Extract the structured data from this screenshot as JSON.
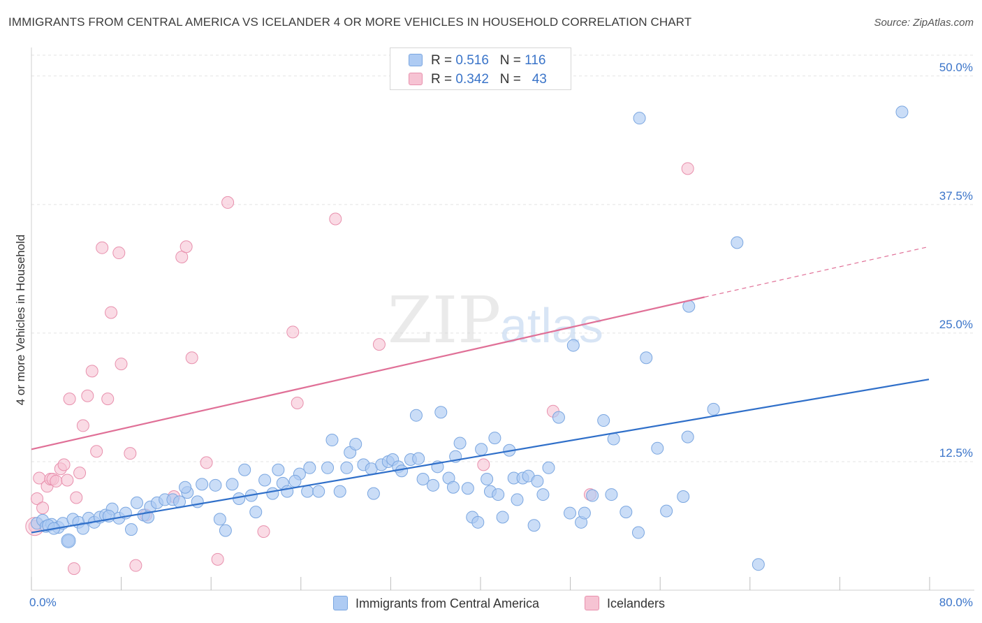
{
  "header": {
    "title": "IMMIGRANTS FROM CENTRAL AMERICA VS ICELANDER 4 OR MORE VEHICLES IN HOUSEHOLD CORRELATION CHART",
    "source": "Source: ZipAtlas.com"
  },
  "watermark": {
    "zip": "ZIP",
    "atlas": "atlas"
  },
  "legend_top": {
    "rows": [
      {
        "r_label": "R =",
        "r_value": "0.516",
        "n_label": "N =",
        "n_value": "116"
      },
      {
        "r_label": "R =",
        "r_value": "0.342",
        "n_label": "N =",
        "n_value": "43"
      }
    ]
  },
  "legend_bottom": {
    "items": [
      {
        "label": "Immigrants from Central America"
      },
      {
        "label": "Icelanders"
      }
    ]
  },
  "colors": {
    "blue_fill": "#aecbf3",
    "blue_stroke": "#7aa6e0",
    "blue_line": "#2f6fc9",
    "pink_fill": "#f6c3d3",
    "pink_stroke": "#e890ad",
    "pink_line": "#e07097",
    "axis_text": "#3a74c9",
    "grid": "#e3e3e3"
  },
  "chart_data": {
    "type": "scatter",
    "title": "IMMIGRANTS FROM CENTRAL AMERICA VS ICELANDER 4 OR MORE VEHICLES IN HOUSEHOLD CORRELATION CHART",
    "xlabel": "",
    "ylabel": "4 or more Vehicles in Household",
    "xlim": [
      0,
      80
    ],
    "ylim": [
      0,
      52.5
    ],
    "x_tick_labels": [
      "0.0%",
      "80.0%"
    ],
    "y_ticks": [
      12.5,
      25.0,
      37.5,
      50.0
    ],
    "y_tick_labels": [
      "12.5%",
      "25.0%",
      "37.5%",
      "50.0%"
    ],
    "grid": true,
    "legend_position": "top-center",
    "series": [
      {
        "name": "Immigrants from Central America",
        "color": "#aecbf3",
        "trend": {
          "x": [
            0,
            80
          ],
          "y": [
            5.6,
            20.5
          ],
          "dashed_from": null
        },
        "points": [
          [
            0.5,
            6.5
          ],
          [
            1.0,
            6.8
          ],
          [
            1.3,
            6.2
          ],
          [
            1.8,
            6.4
          ],
          [
            2.4,
            6.1
          ],
          [
            2.8,
            6.5
          ],
          [
            3.3,
            4.8
          ],
          [
            3.7,
            6.9
          ],
          [
            4.2,
            6.6
          ],
          [
            4.6,
            6.0
          ],
          [
            5.1,
            7.0
          ],
          [
            5.6,
            6.6
          ],
          [
            6.1,
            7.1
          ],
          [
            6.6,
            7.3
          ],
          [
            7.2,
            7.9
          ],
          [
            7.8,
            7.0
          ],
          [
            8.4,
            7.5
          ],
          [
            8.9,
            5.9
          ],
          [
            9.4,
            8.5
          ],
          [
            10.0,
            7.3
          ],
          [
            10.6,
            8.1
          ],
          [
            11.2,
            8.5
          ],
          [
            11.9,
            8.8
          ],
          [
            12.6,
            8.8
          ],
          [
            13.2,
            8.6
          ],
          [
            13.9,
            9.5
          ],
          [
            14.8,
            8.6
          ],
          [
            15.2,
            10.3
          ],
          [
            16.4,
            10.2
          ],
          [
            16.8,
            6.9
          ],
          [
            17.3,
            5.8
          ],
          [
            17.9,
            10.3
          ],
          [
            18.5,
            8.9
          ],
          [
            19.0,
            11.7
          ],
          [
            19.6,
            9.2
          ],
          [
            20.0,
            7.6
          ],
          [
            20.8,
            10.7
          ],
          [
            21.5,
            9.4
          ],
          [
            22.0,
            11.7
          ],
          [
            22.4,
            10.4
          ],
          [
            22.8,
            9.6
          ],
          [
            23.9,
            11.3
          ],
          [
            24.6,
            9.6
          ],
          [
            24.8,
            11.9
          ],
          [
            25.6,
            9.6
          ],
          [
            26.4,
            11.9
          ],
          [
            26.8,
            14.6
          ],
          [
            27.5,
            9.6
          ],
          [
            28.1,
            11.9
          ],
          [
            28.4,
            13.4
          ],
          [
            28.9,
            14.2
          ],
          [
            29.6,
            12.2
          ],
          [
            30.3,
            11.8
          ],
          [
            30.5,
            9.4
          ],
          [
            31.2,
            12.2
          ],
          [
            31.8,
            12.5
          ],
          [
            32.2,
            12.7
          ],
          [
            32.7,
            12.0
          ],
          [
            33.0,
            11.6
          ],
          [
            33.8,
            12.7
          ],
          [
            34.3,
            17.0
          ],
          [
            34.5,
            12.8
          ],
          [
            34.9,
            10.8
          ],
          [
            35.8,
            10.2
          ],
          [
            36.2,
            12.0
          ],
          [
            36.5,
            17.3
          ],
          [
            37.2,
            10.9
          ],
          [
            37.6,
            10.0
          ],
          [
            37.8,
            13.0
          ],
          [
            38.2,
            14.3
          ],
          [
            38.9,
            9.9
          ],
          [
            39.3,
            7.1
          ],
          [
            39.8,
            6.6
          ],
          [
            40.1,
            13.7
          ],
          [
            40.6,
            10.8
          ],
          [
            40.9,
            9.6
          ],
          [
            41.3,
            14.8
          ],
          [
            41.6,
            9.3
          ],
          [
            42.0,
            7.1
          ],
          [
            42.6,
            13.6
          ],
          [
            43.0,
            10.9
          ],
          [
            43.3,
            8.8
          ],
          [
            43.8,
            10.9
          ],
          [
            44.3,
            11.1
          ],
          [
            44.8,
            6.3
          ],
          [
            45.1,
            10.6
          ],
          [
            45.6,
            9.3
          ],
          [
            46.1,
            11.9
          ],
          [
            47.0,
            16.8
          ],
          [
            48.0,
            7.5
          ],
          [
            48.3,
            23.8
          ],
          [
            49.0,
            6.6
          ],
          [
            49.3,
            7.5
          ],
          [
            50.0,
            9.2
          ],
          [
            51.0,
            16.5
          ],
          [
            51.7,
            9.3
          ],
          [
            51.9,
            14.7
          ],
          [
            53.0,
            7.6
          ],
          [
            54.1,
            5.6
          ],
          [
            54.2,
            45.9
          ],
          [
            54.8,
            22.6
          ],
          [
            55.8,
            13.8
          ],
          [
            56.6,
            7.7
          ],
          [
            58.1,
            9.1
          ],
          [
            58.5,
            14.9
          ],
          [
            58.6,
            27.6
          ],
          [
            60.8,
            17.6
          ],
          [
            62.9,
            33.8
          ],
          [
            64.8,
            2.5
          ],
          [
            77.6,
            46.5
          ],
          [
            1.5,
            6.3
          ],
          [
            2.0,
            6.0
          ],
          [
            6.9,
            7.2
          ],
          [
            10.4,
            7.1
          ],
          [
            13.7,
            10.0
          ],
          [
            23.5,
            10.6
          ]
        ]
      },
      {
        "name": "Icelanders",
        "color": "#f6c3d3",
        "trend": {
          "x": [
            0,
            60,
            80
          ],
          "y": [
            13.7,
            28.5,
            33.4
          ],
          "dashed_from": 60
        },
        "points": [
          [
            0.3,
            6.2
          ],
          [
            0.5,
            8.9
          ],
          [
            0.7,
            10.9
          ],
          [
            1.0,
            8.0
          ],
          [
            1.4,
            10.1
          ],
          [
            1.7,
            10.8
          ],
          [
            1.9,
            10.8
          ],
          [
            2.2,
            10.6
          ],
          [
            2.6,
            11.8
          ],
          [
            2.9,
            12.2
          ],
          [
            3.2,
            10.7
          ],
          [
            3.4,
            18.6
          ],
          [
            3.8,
            2.1
          ],
          [
            4.0,
            9.0
          ],
          [
            4.3,
            11.4
          ],
          [
            4.6,
            16.0
          ],
          [
            5.0,
            18.9
          ],
          [
            5.4,
            21.3
          ],
          [
            5.8,
            13.5
          ],
          [
            6.3,
            33.3
          ],
          [
            6.8,
            18.6
          ],
          [
            7.1,
            27.0
          ],
          [
            7.8,
            32.8
          ],
          [
            8.0,
            22.0
          ],
          [
            8.8,
            13.3
          ],
          [
            9.3,
            2.4
          ],
          [
            10.2,
            7.3
          ],
          [
            12.7,
            9.1
          ],
          [
            13.4,
            32.4
          ],
          [
            13.8,
            33.4
          ],
          [
            14.3,
            22.6
          ],
          [
            15.6,
            12.4
          ],
          [
            16.6,
            3.0
          ],
          [
            17.5,
            37.7
          ],
          [
            20.7,
            5.7
          ],
          [
            23.3,
            25.1
          ],
          [
            23.7,
            18.2
          ],
          [
            27.1,
            36.1
          ],
          [
            31.0,
            23.9
          ],
          [
            40.3,
            12.2
          ],
          [
            46.5,
            17.4
          ],
          [
            49.8,
            9.3
          ],
          [
            58.5,
            41.0
          ]
        ]
      }
    ]
  }
}
